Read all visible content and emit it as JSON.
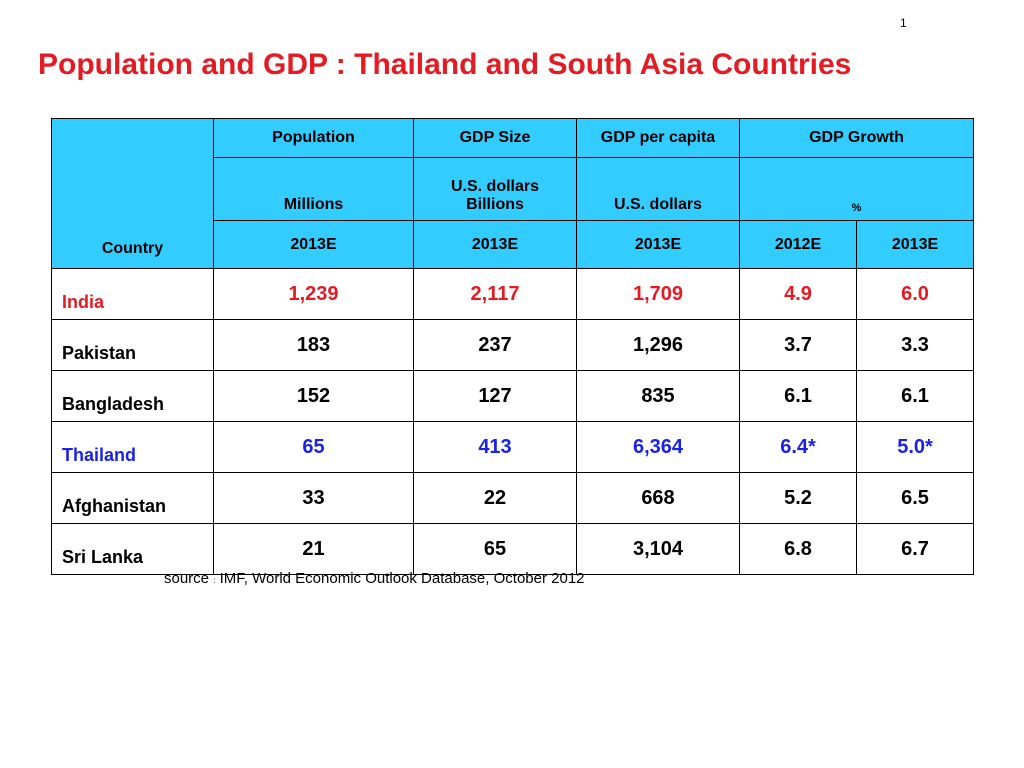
{
  "page_number": "1",
  "title": "Population and GDP :  Thailand and South Asia Countries",
  "table": {
    "country_header": "Country",
    "header_row1": [
      "Population",
      "GDP Size",
      "GDP per capita",
      "GDP Growth"
    ],
    "header_row2": [
      "Millions",
      "U.S. dollars Billions",
      "U.S. dollars",
      "%"
    ],
    "header_row3": [
      "2013E",
      "2013E",
      "2013E",
      "2012E",
      "2013E"
    ],
    "rows": [
      {
        "country": "India",
        "values": [
          "1,239",
          "2,117",
          "1,709",
          "4.9",
          "6.0"
        ]
      },
      {
        "country": "Pakistan",
        "values": [
          "183",
          "237",
          "1,296",
          "3.7",
          "3.3"
        ]
      },
      {
        "country": "Bangladesh",
        "values": [
          "152",
          "127",
          "835",
          "6.1",
          "6.1"
        ]
      },
      {
        "country": "Thailand",
        "values": [
          "65",
          "413",
          "6,364",
          "6.4*",
          "5.0*"
        ]
      },
      {
        "country": "Afghanistan",
        "values": [
          "33",
          "22",
          "668",
          "5.2",
          "6.5"
        ]
      },
      {
        "country": "Sri Lanka",
        "values": [
          "21",
          "65",
          "3,104",
          "6.8",
          "6.7"
        ]
      }
    ]
  },
  "source": {
    "label": "source",
    "colon": ":",
    "text": " IMF, World Economic Outlook Database, October  2012"
  },
  "colors": {
    "title": "#e31b23",
    "header_bg": "#33ccff",
    "highlight_red": "#e31b23",
    "highlight_blue": "#1a22e6"
  }
}
